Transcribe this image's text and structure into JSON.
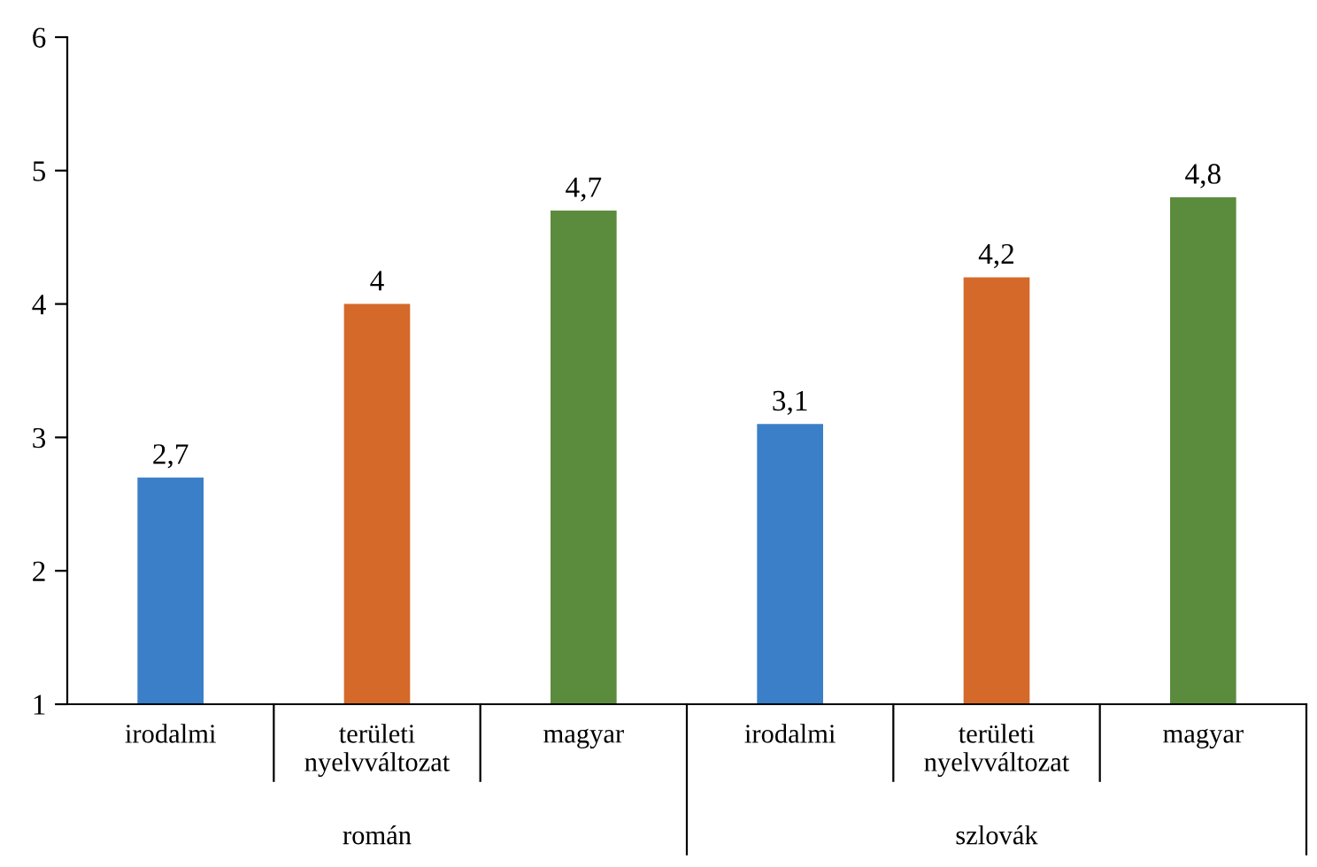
{
  "chart_data": {
    "type": "bar",
    "categories": [
      "irodalmi",
      "területi\nnyelvváltozat",
      "magyar",
      "irodalmi",
      "területi\nnyelvváltozat",
      "magyar"
    ],
    "values": [
      2.7,
      4,
      4.7,
      3.1,
      4.2,
      4.8
    ],
    "colors": [
      "#3a7fc8",
      "#d4692a",
      "#5b8c3e",
      "#3a7fc8",
      "#d4692a",
      "#5b8c3e"
    ],
    "value_labels": [
      "2,7",
      "4",
      "4,7",
      "3,1",
      "4,2",
      "4,8"
    ],
    "ylim": [
      1,
      6
    ],
    "yticks": [
      1,
      2,
      3,
      4,
      5,
      6
    ],
    "grid": false,
    "legend": false,
    "annotations": [
      "román",
      "szlovák"
    ]
  }
}
